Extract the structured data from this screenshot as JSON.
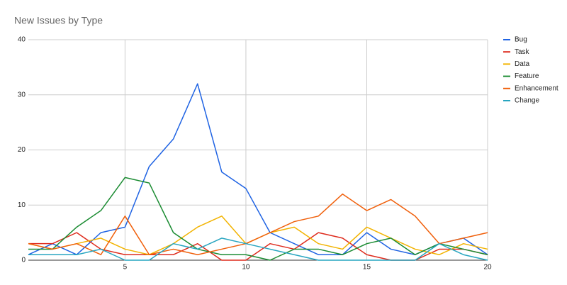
{
  "chart_data": {
    "type": "line",
    "title": "New Issues by Type",
    "x": [
      1,
      2,
      3,
      4,
      5,
      6,
      7,
      8,
      9,
      10,
      11,
      12,
      13,
      14,
      15,
      16,
      17,
      18,
      19,
      20
    ],
    "series": [
      {
        "name": "Bug",
        "color": "#1f63e3",
        "values": [
          1,
          3,
          1,
          5,
          6,
          17,
          22,
          32,
          16,
          13,
          5,
          3,
          1,
          1,
          5,
          2,
          1,
          3,
          4,
          1
        ]
      },
      {
        "name": "Task",
        "color": "#de2b1d",
        "values": [
          3,
          3,
          5,
          2,
          1,
          1,
          1,
          3,
          0,
          0,
          3,
          2,
          5,
          4,
          1,
          0,
          0,
          2,
          2,
          1
        ]
      },
      {
        "name": "Data",
        "color": "#f2b300",
        "values": [
          3,
          2,
          3,
          4,
          2,
          1,
          3,
          6,
          8,
          3,
          5,
          6,
          3,
          2,
          6,
          4,
          2,
          1,
          3,
          2
        ]
      },
      {
        "name": "Feature",
        "color": "#1c8c33",
        "values": [
          2,
          2,
          6,
          9,
          15,
          14,
          5,
          2,
          1,
          1,
          0,
          2,
          2,
          1,
          3,
          4,
          1,
          3,
          2,
          1
        ]
      },
      {
        "name": "Enhancement",
        "color": "#f05f0a",
        "values": [
          3,
          2,
          3,
          1,
          8,
          1,
          2,
          1,
          2,
          3,
          5,
          7,
          8,
          12,
          9,
          11,
          8,
          3,
          4,
          5
        ]
      },
      {
        "name": "Change",
        "color": "#27a5c0",
        "values": [
          1,
          1,
          1,
          2,
          0,
          0,
          3,
          2,
          4,
          3,
          2,
          1,
          0,
          0,
          0,
          0,
          0,
          3,
          1,
          0
        ]
      }
    ],
    "xlim": [
      1,
      20
    ],
    "xticks": [
      5,
      10,
      15,
      20
    ],
    "ylim": [
      0,
      40
    ],
    "yticks": [
      0,
      10,
      20,
      30,
      40
    ],
    "grid": true,
    "legend": "right"
  }
}
